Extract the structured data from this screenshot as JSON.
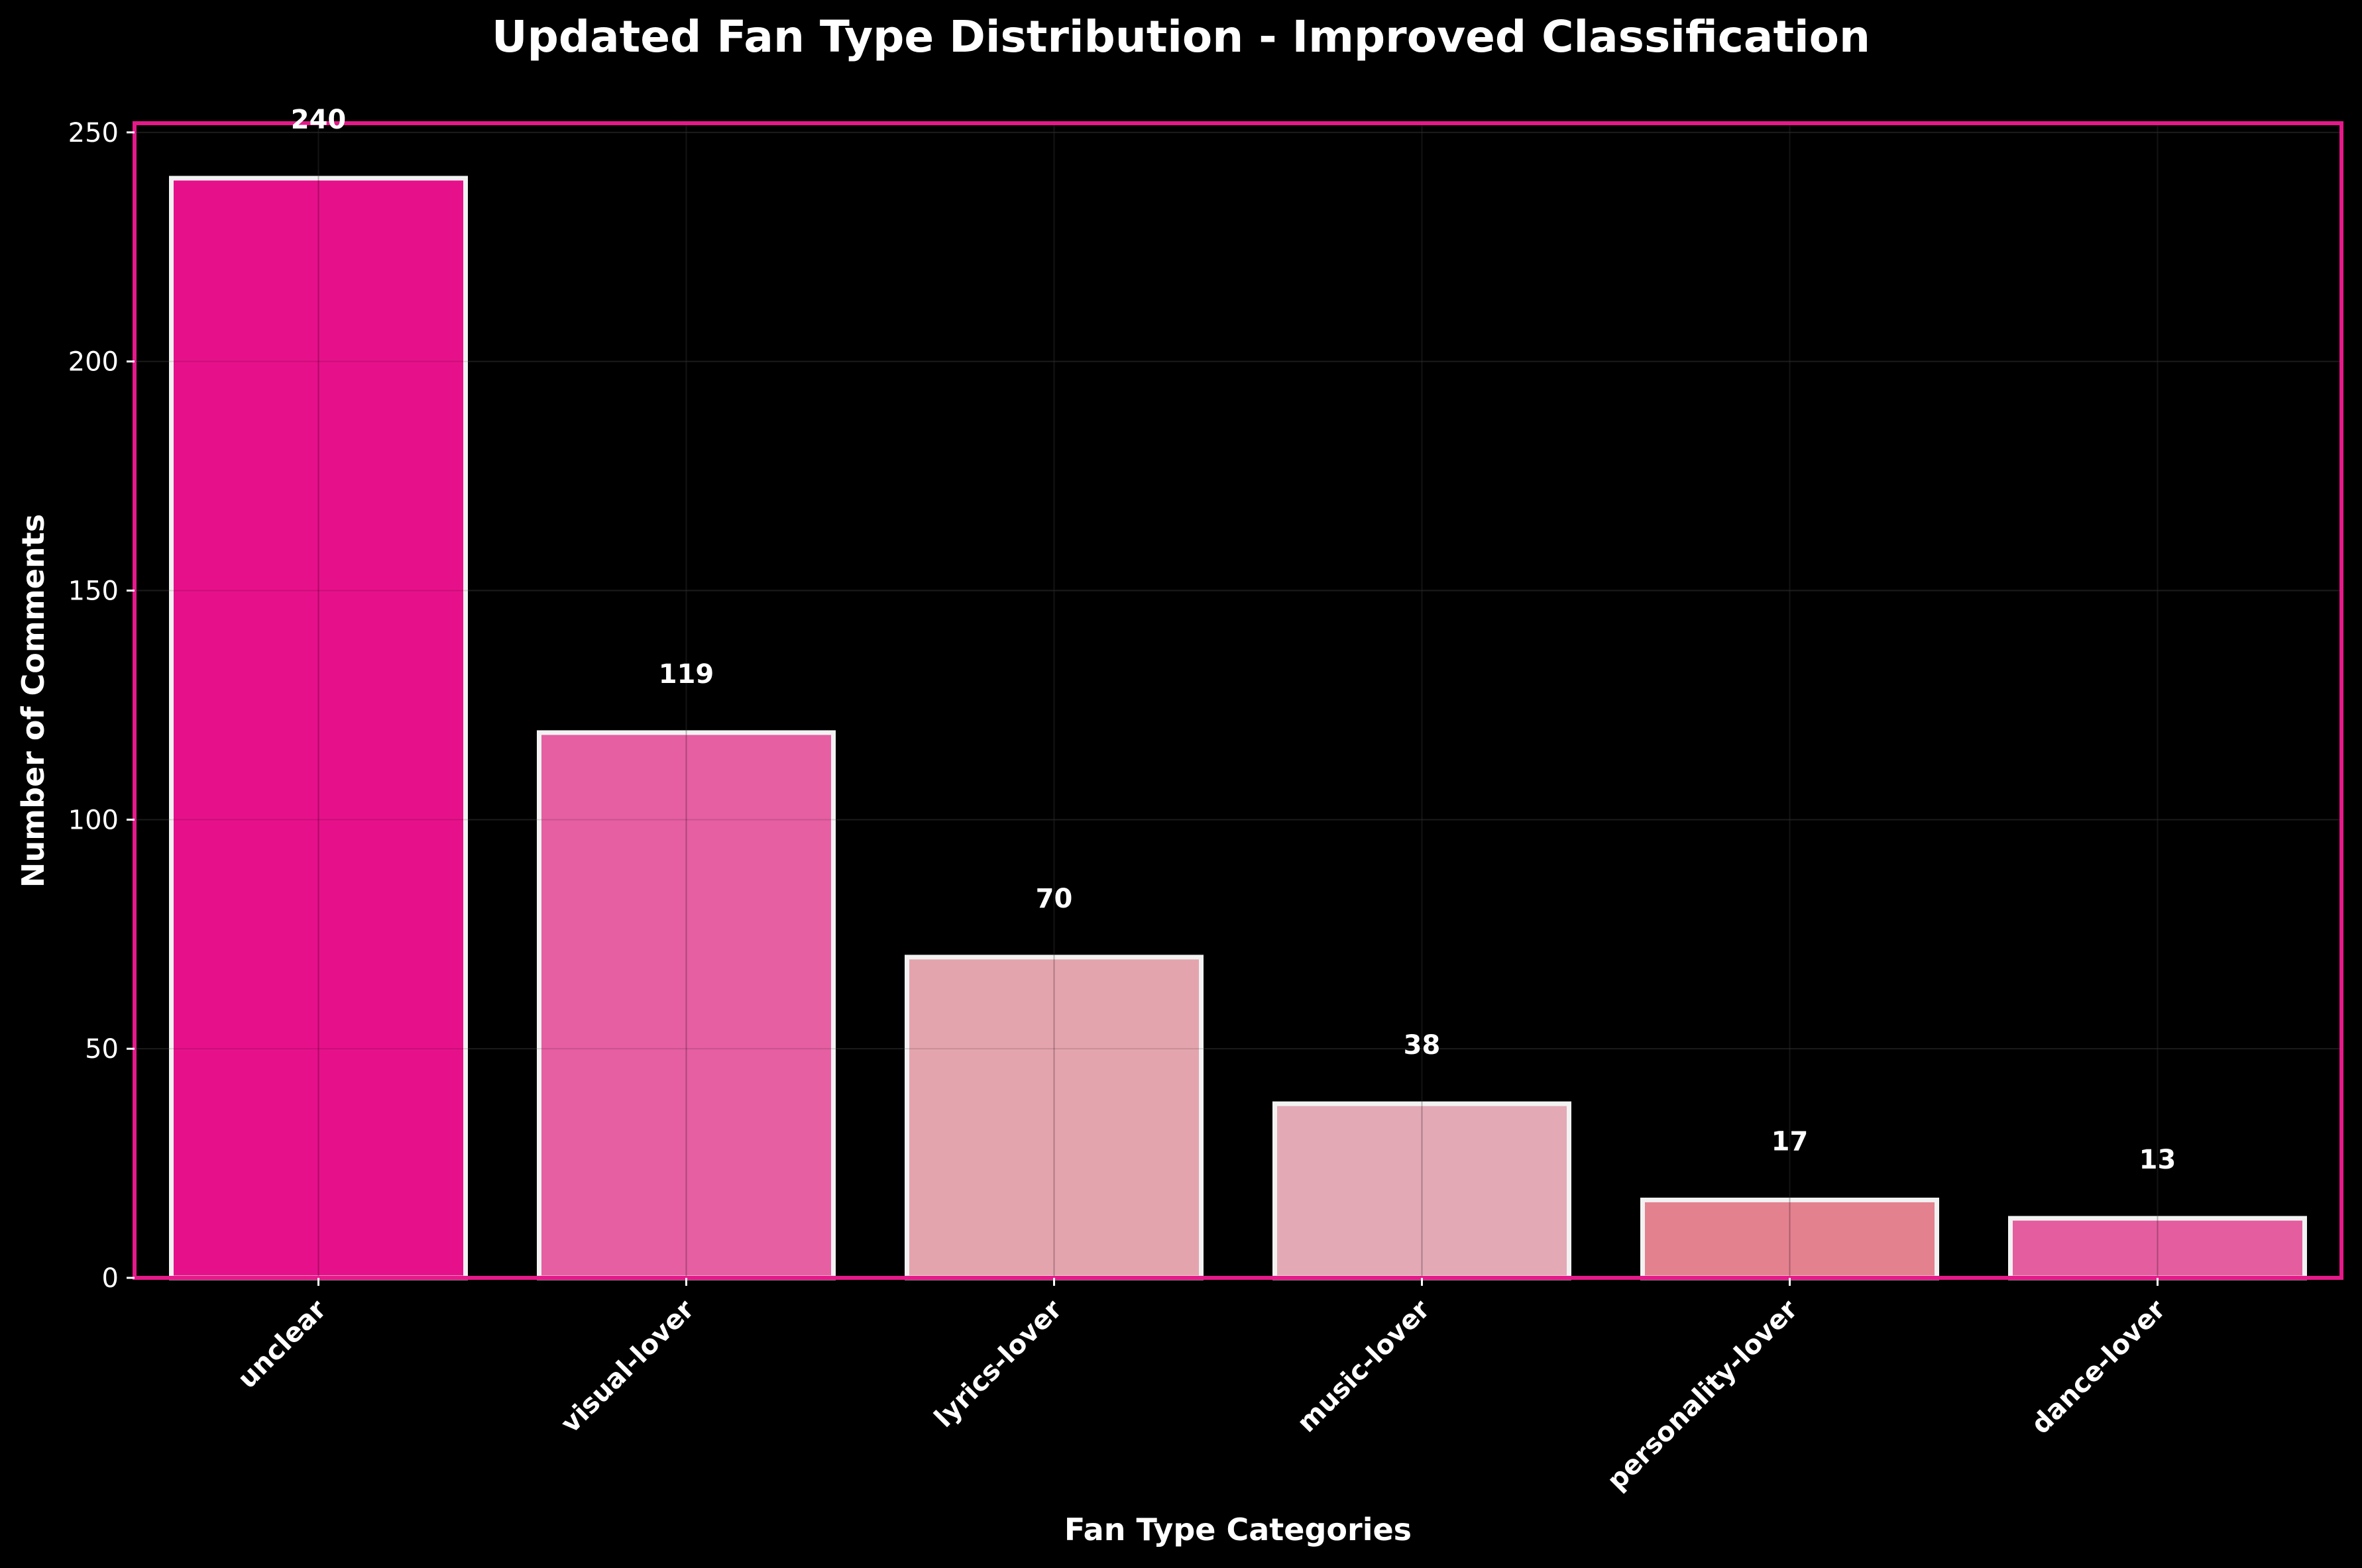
{
  "chart_data": {
    "type": "bar",
    "title": "Updated Fan Type Distribution - Improved Classification",
    "xlabel": "Fan Type Categories",
    "ylabel": "Number of Comments",
    "categories": [
      "unclear",
      "visual-lover",
      "lyrics-lover",
      "music-lover",
      "personality-lover",
      "dance-lover"
    ],
    "values": [
      240,
      119,
      70,
      38,
      17,
      13
    ],
    "data_labels": [
      "240",
      "119",
      "70",
      "38",
      "17",
      "13"
    ],
    "ylim": [
      0,
      252
    ],
    "yticks": [
      0,
      50,
      100,
      150,
      200,
      250
    ],
    "ytick_labels": [
      "0",
      "50",
      "100",
      "150",
      "200",
      "250"
    ],
    "grid": true,
    "colors": {
      "background": "#000000",
      "plot_border": "#e6198a",
      "bar_edge": "#f2f2f2",
      "text": "#ffffff",
      "bars": [
        "#e6118a",
        "#e55fa2",
        "#e4a4ae",
        "#e3aab6",
        "#e4818f",
        "#e45e9f"
      ]
    }
  }
}
